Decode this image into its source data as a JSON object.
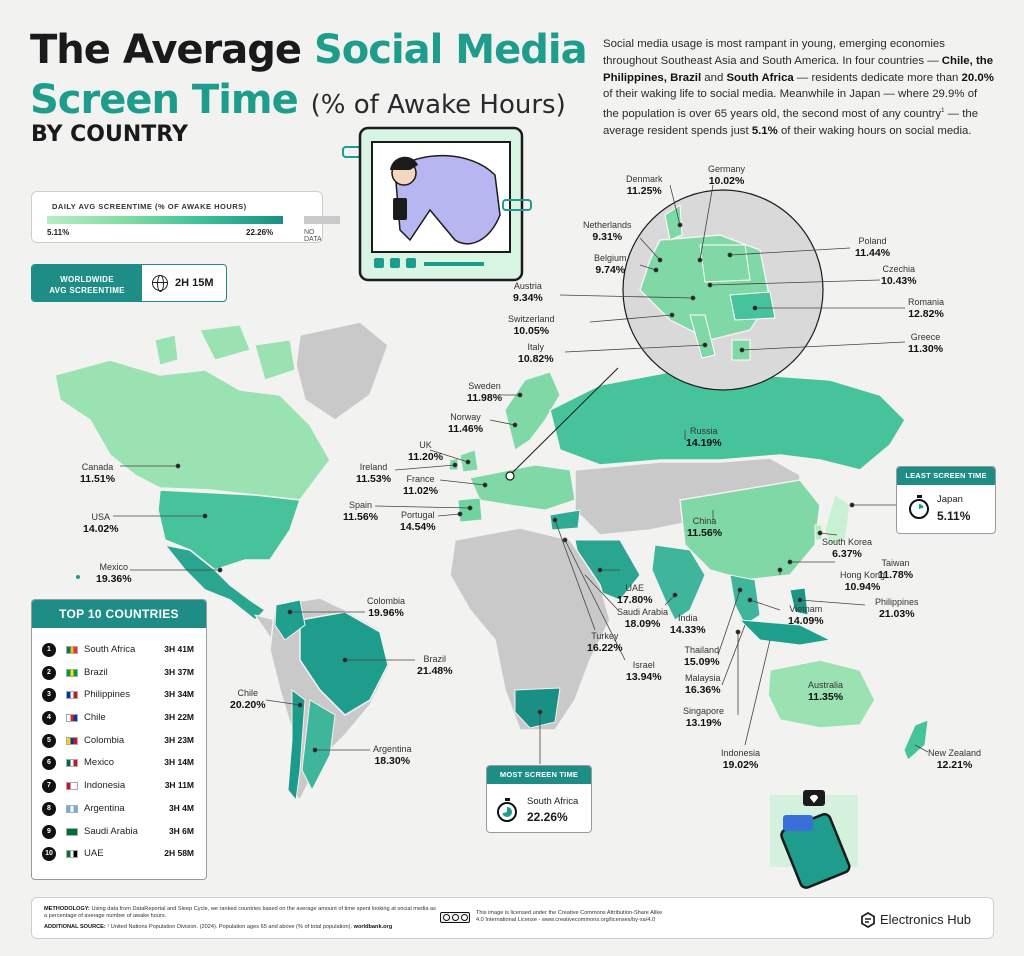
{
  "title": {
    "line1_dark": "The Average",
    "line1_teal": "Social Media",
    "line2_teal": "Screen Time",
    "line2_paren": "(% of Awake Hours)",
    "line3": "BY COUNTRY"
  },
  "intro": {
    "p1": "Social media usage is most rampant in young, emerging economies throughout Southeast Asia and South America. In four countries — ",
    "b1": "Chile, the Philippines, Brazil",
    "p2": " and ",
    "b2": "South Africa",
    "p3": " — residents dedicate more than ",
    "b3": "20.0%",
    "p4": " of their waking life to social media. Meanwhile in Japan — where 29.9% of the population is over 65 years old, the second most of any country",
    "sup": "1",
    "p5": " — the average resident spends just ",
    "b4": "5.1%",
    "p6": " of their waking hours on social media."
  },
  "legend": {
    "title": "DAILY AVG SCREENTIME (% OF AWAKE HOURS)",
    "min": "5.11%",
    "max": "22.26%",
    "no_data": "NO DATA",
    "colors": {
      "low": "#b7ecc4",
      "mid": "#3fbf9a",
      "high": "#1a8f86",
      "no_data": "#c9c9c9"
    }
  },
  "worldwide": {
    "label_line1": "WORLDWIDE",
    "label_line2": "AVG SCREENTIME",
    "value": "2H 15M",
    "icon": "globe-icon"
  },
  "countries": {
    "canada": {
      "name": "Canada",
      "value": "11.51%"
    },
    "usa": {
      "name": "USA",
      "value": "14.02%"
    },
    "mexico": {
      "name": "Mexico",
      "value": "19.36%"
    },
    "colombia": {
      "name": "Colombia",
      "value": "19.96%"
    },
    "brazil": {
      "name": "Brazil",
      "value": "21.48%"
    },
    "chile": {
      "name": "Chile",
      "value": "20.20%"
    },
    "argentina": {
      "name": "Argentina",
      "value": "18.30%"
    },
    "sweden": {
      "name": "Sweden",
      "value": "11.98%"
    },
    "norway": {
      "name": "Norway",
      "value": "11.46%"
    },
    "uk": {
      "name": "UK",
      "value": "11.20%"
    },
    "ireland": {
      "name": "Ireland",
      "value": "11.53%"
    },
    "france": {
      "name": "France",
      "value": "11.02%"
    },
    "spain": {
      "name": "Spain",
      "value": "11.56%"
    },
    "portugal": {
      "name": "Portugal",
      "value": "14.54%"
    },
    "denmark": {
      "name": "Denmark",
      "value": "11.25%"
    },
    "germany": {
      "name": "Germany",
      "value": "10.02%"
    },
    "netherlands": {
      "name": "Netherlands",
      "value": "9.31%"
    },
    "belgium": {
      "name": "Belgium",
      "value": "9.74%"
    },
    "austria": {
      "name": "Austria",
      "value": "9.34%"
    },
    "switzerland": {
      "name": "Switzerland",
      "value": "10.05%"
    },
    "italy": {
      "name": "Italy",
      "value": "10.82%"
    },
    "poland": {
      "name": "Poland",
      "value": "11.44%"
    },
    "czechia": {
      "name": "Czechia",
      "value": "10.43%"
    },
    "romania": {
      "name": "Romania",
      "value": "12.82%"
    },
    "greece": {
      "name": "Greece",
      "value": "11.30%"
    },
    "russia": {
      "name": "Russia",
      "value": "14.19%"
    },
    "china": {
      "name": "China",
      "value": "11.56%"
    },
    "south_korea": {
      "name": "South Korea",
      "value": "6.37%"
    },
    "taiwan": {
      "name": "Taiwan",
      "value": "11.78%"
    },
    "hong_kong": {
      "name": "Hong Kong",
      "value": "10.94%"
    },
    "philippines": {
      "name": "Philippines",
      "value": "21.03%"
    },
    "vietnam": {
      "name": "Vietnam",
      "value": "14.09%"
    },
    "uae": {
      "name": "UAE",
      "value": "17.80%"
    },
    "saudi_arabia": {
      "name": "Saudi Arabia",
      "value": "18.09%"
    },
    "india": {
      "name": "India",
      "value": "14.33%"
    },
    "turkey": {
      "name": "Turkey",
      "value": "16.22%"
    },
    "israel": {
      "name": "Israel",
      "value": "13.94%"
    },
    "thailand": {
      "name": "Thailand",
      "value": "15.09%"
    },
    "malaysia": {
      "name": "Malaysia",
      "value": "16.36%"
    },
    "singapore": {
      "name": "Singapore",
      "value": "13.19%"
    },
    "indonesia": {
      "name": "Indonesia",
      "value": "19.02%"
    },
    "australia": {
      "name": "Australia",
      "value": "11.35%"
    },
    "new_zealand": {
      "name": "New Zealand",
      "value": "12.21%"
    }
  },
  "least": {
    "header": "LEAST SCREEN TIME",
    "name": "Japan",
    "value": "5.11%"
  },
  "most": {
    "header": "MOST SCREEN TIME",
    "name": "South Africa",
    "value": "22.26%"
  },
  "top10": {
    "header": "TOP 10 COUNTRIES",
    "rows": [
      {
        "rank": "1",
        "name": "South Africa",
        "time": "3H 41M",
        "flag": [
          "#007a4d",
          "#ffb612",
          "#de3831"
        ]
      },
      {
        "rank": "2",
        "name": "Brazil",
        "time": "3H 37M",
        "flag": [
          "#009c3b",
          "#ffdf00",
          "#009c3b"
        ]
      },
      {
        "rank": "3",
        "name": "Philippines",
        "time": "3H 34M",
        "flag": [
          "#0038a8",
          "#ffffff",
          "#ce1126"
        ]
      },
      {
        "rank": "4",
        "name": "Chile",
        "time": "3H 22M",
        "flag": [
          "#ffffff",
          "#d52b1e",
          "#0039a6"
        ]
      },
      {
        "rank": "5",
        "name": "Colombia",
        "time": "3H 23M",
        "flag": [
          "#fcd116",
          "#003893",
          "#ce1126"
        ]
      },
      {
        "rank": "6",
        "name": "Mexico",
        "time": "3H 14M",
        "flag": [
          "#006847",
          "#ffffff",
          "#ce1126"
        ]
      },
      {
        "rank": "7",
        "name": "Indonesia",
        "time": "3H 11M",
        "flag": [
          "#ce1126",
          "#ffffff",
          "#ffffff"
        ]
      },
      {
        "rank": "8",
        "name": "Argentina",
        "time": "3H 4M",
        "flag": [
          "#74acdf",
          "#ffffff",
          "#74acdf"
        ]
      },
      {
        "rank": "9",
        "name": "Saudi Arabia",
        "time": "3H 6M",
        "flag": [
          "#006c35",
          "#006c35",
          "#006c35"
        ]
      },
      {
        "rank": "10",
        "name": "UAE",
        "time": "2H 58M",
        "flag": [
          "#00732f",
          "#ffffff",
          "#000000"
        ]
      }
    ]
  },
  "footer": {
    "methodology_label": "METHODOLOGY:",
    "methodology_text": " Using data from DataReportal and Sleep Cycle, we ranked countries based on the average amount of time spent looking at social media as a percentage of average number of awake hours.",
    "source_label": "ADDITIONAL SOURCE:",
    "source_text": " ¹ United Nations Population Division. (2024). Population ages 65 and above (% of total population). ",
    "source_bold": "worldbank.org",
    "license_line1": "This image is licensed under the Creative Commons Attribution-Share Alike",
    "license_line2": "4.0 International License - www.creativecommons.org/licenses/by-sa/4.0",
    "brand": "Electronics Hub"
  }
}
